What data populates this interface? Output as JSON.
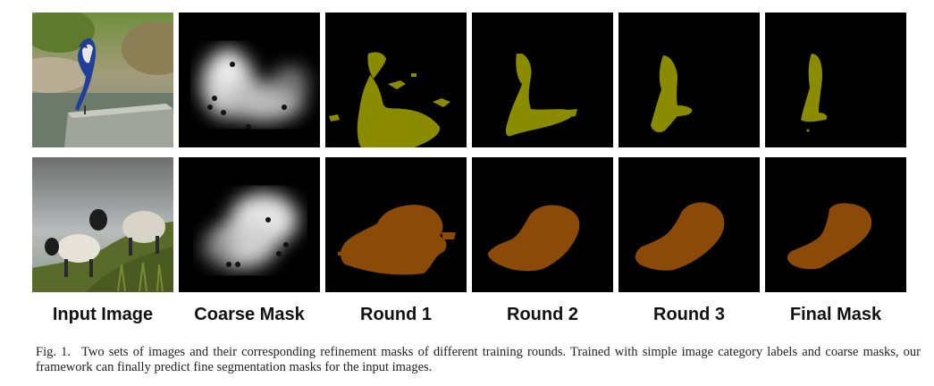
{
  "column_labels": [
    "Input Image",
    "Coarse Mask",
    "Round 1",
    "Round 2",
    "Round 3",
    "Final Mask"
  ],
  "rows": [
    {
      "subject": "blue jay bird perched on rock",
      "mask_color": "#8b8b00"
    },
    {
      "subject": "two sheep standing on grassy hillside",
      "mask_color": "#8b4a07"
    }
  ],
  "caption": {
    "label": "Fig. 1.",
    "text": "Two sets of images and their corresponding refinement masks of different training rounds. Trained with simple image category labels and coarse masks, our framework can finally predict fine segmentation masks for the input images."
  }
}
